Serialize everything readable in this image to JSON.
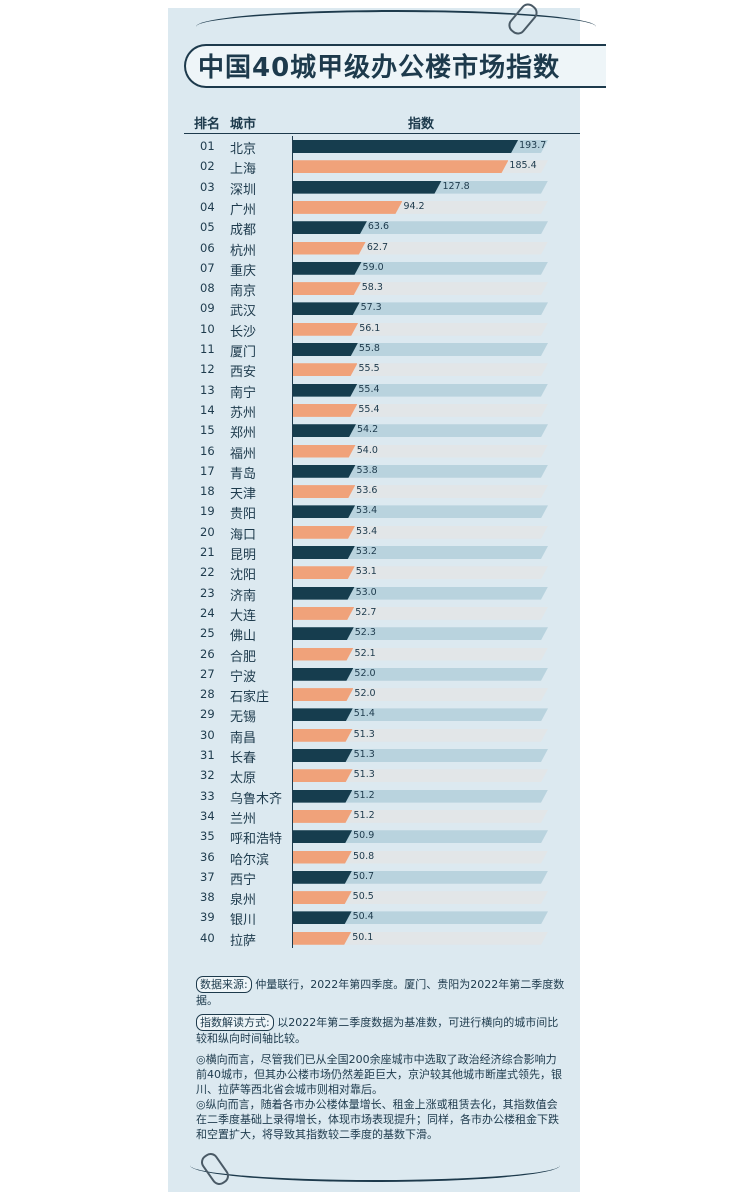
{
  "title": "中国40城甲级办公楼市场指数",
  "header": {
    "rank": "排名",
    "city": "城市",
    "index": "指数"
  },
  "colors": {
    "dark": "#163d4e",
    "orange": "#f0a27a",
    "track_blue": "#b9d3de",
    "track_grey": "#e2e6e8"
  },
  "chart_data": {
    "type": "bar",
    "orientation": "horizontal",
    "xlim": [
      0,
      220
    ],
    "ranks": [
      "01",
      "02",
      "03",
      "04",
      "05",
      "06",
      "07",
      "08",
      "09",
      "10",
      "11",
      "12",
      "13",
      "14",
      "15",
      "16",
      "17",
      "18",
      "19",
      "20",
      "21",
      "22",
      "23",
      "24",
      "25",
      "26",
      "27",
      "28",
      "29",
      "30",
      "31",
      "32",
      "33",
      "34",
      "35",
      "36",
      "37",
      "38",
      "39",
      "40"
    ],
    "categories": [
      "北京",
      "上海",
      "深圳",
      "广州",
      "成都",
      "杭州",
      "重庆",
      "南京",
      "武汉",
      "长沙",
      "厦门",
      "西安",
      "南宁",
      "苏州",
      "郑州",
      "福州",
      "青岛",
      "天津",
      "贵阳",
      "海口",
      "昆明",
      "沈阳",
      "济南",
      "大连",
      "佛山",
      "合肥",
      "宁波",
      "石家庄",
      "无锡",
      "南昌",
      "长春",
      "太原",
      "乌鲁木齐",
      "兰州",
      "呼和浩特",
      "哈尔滨",
      "西宁",
      "泉州",
      "银川",
      "拉萨"
    ],
    "values": [
      193.7,
      185.4,
      127.8,
      94.2,
      63.6,
      62.7,
      59.0,
      58.3,
      57.3,
      56.1,
      55.8,
      55.5,
      55.4,
      55.4,
      54.2,
      54.0,
      53.8,
      53.6,
      53.4,
      53.4,
      53.2,
      53.1,
      53.0,
      52.7,
      52.3,
      52.1,
      52.0,
      52.0,
      51.4,
      51.3,
      51.3,
      51.3,
      51.2,
      51.2,
      50.9,
      50.8,
      50.7,
      50.5,
      50.4,
      50.1
    ],
    "value_labels": [
      "193.7",
      "185.4",
      "127.8",
      "94.2",
      "63.6",
      "62.7",
      "59.0",
      "58.3",
      "57.3",
      "56.1",
      "55.8",
      "55.5",
      "55.4",
      "55.4",
      "54.2",
      "54.0",
      "53.8",
      "53.6",
      "53.4",
      "53.4",
      "53.2",
      "53.1",
      "53.0",
      "52.7",
      "52.3",
      "52.1",
      "52.0",
      "52.0",
      "51.4",
      "51.3",
      "51.3",
      "51.3",
      "51.2",
      "51.2",
      "50.9",
      "50.8",
      "50.7",
      "50.5",
      "50.4",
      "50.1"
    ]
  },
  "notes": {
    "source_tag": "数据来源:",
    "source_text": "仲量联行，2022年第四季度。厦门、贵阳为2022年第二季度数据。",
    "method_tag": "指数解读方式:",
    "method_text": "以2022年第二季度数据为基准数，可进行横向的城市间比较和纵向时间轴比较。",
    "point1": "◎横向而言，尽管我们已从全国200余座城市中选取了政治经济综合影响力前40城市，但其办公楼市场仍然差距巨大，京沪较其他城市断崖式领先，银川、拉萨等西北省会城市则相对靠后。",
    "point2": "◎纵向而言，随着各市办公楼体量增长、租金上涨或租赁去化，其指数值会在二季度基础上录得增长，体现市场表现提升；同样，各市办公楼租金下跌和空置扩大，将导致其指数较二季度的基数下滑。"
  }
}
